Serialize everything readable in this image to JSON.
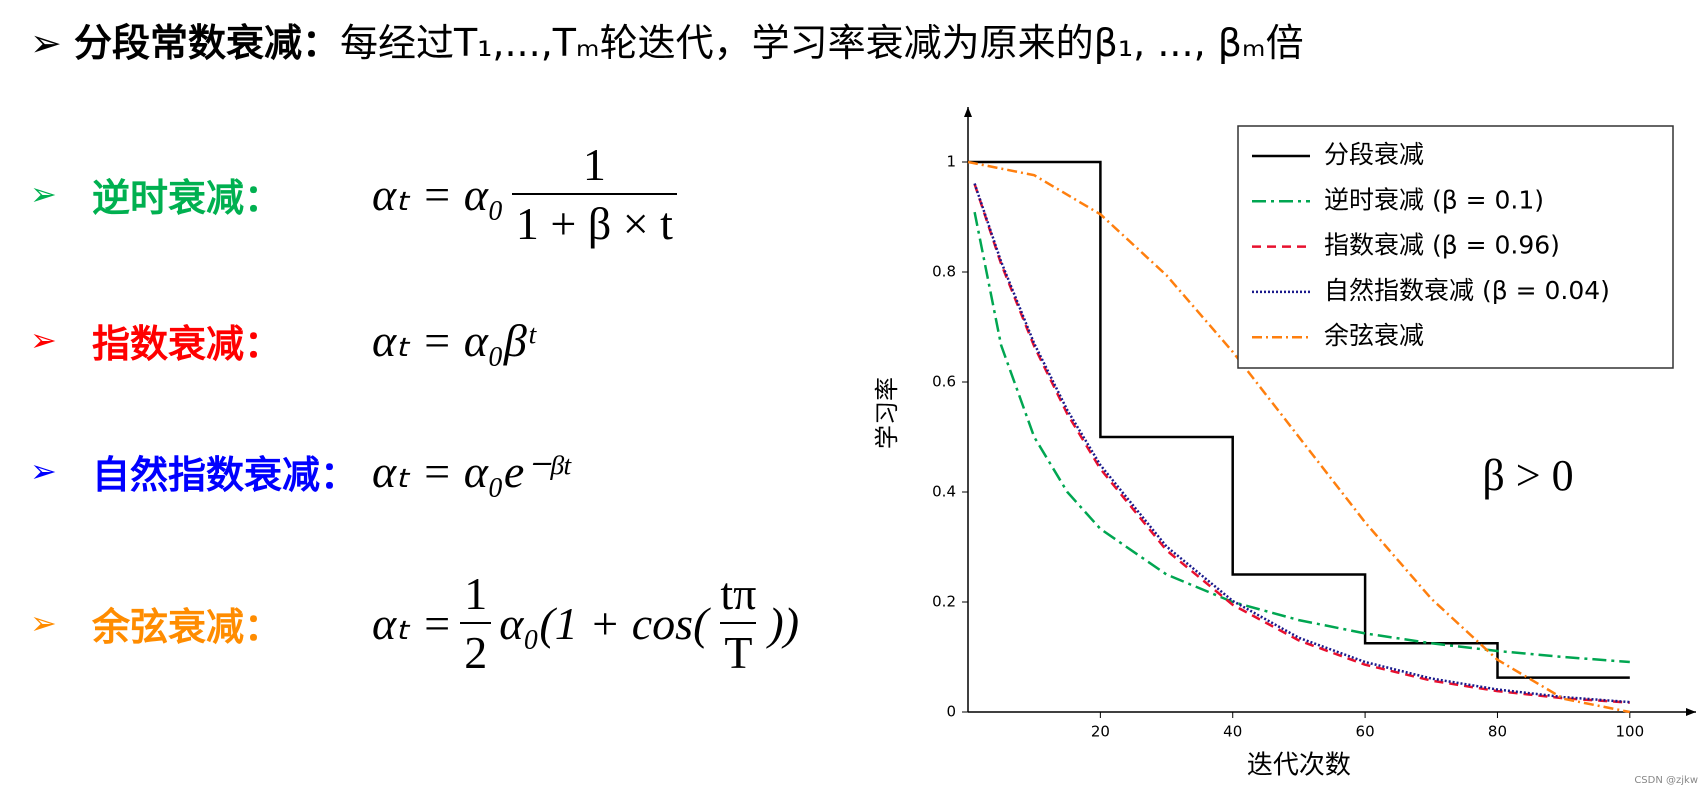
{
  "header": {
    "bullet": "➢",
    "title": "分段常数衰减：",
    "text": "每经过T₁,...,Tₘ轮迭代，学习率衰减为原来的β₁, ..., βₘ倍"
  },
  "formulas": [
    {
      "bullet": "➢",
      "label": "逆时衰减：",
      "color": "#00b050",
      "lhs": "αₜ = α₀",
      "num": "1",
      "den": "1 + β × t"
    },
    {
      "bullet": "➢",
      "label": "指数衰减：",
      "color": "#ff0000",
      "lhs": "αₜ = α₀βᵗ"
    },
    {
      "bullet": "➢",
      "label": "自然指数衰减：",
      "color": "#0000ff",
      "lhs": "αₜ = α₀e⁻ᵝᵗ"
    },
    {
      "bullet": "➢",
      "label": "余弦衰减：",
      "color": "#ff8c00",
      "lhs": "αₜ = ",
      "num": "1",
      "den": "2",
      "rest": "α₀(1 + cos(",
      "num2": "tπ",
      "den2": "T",
      "rest2": "))"
    }
  ],
  "watermark": "CSDN @zjkw",
  "chart_data": {
    "type": "line",
    "xlabel": "迭代次数",
    "ylabel": "学习率",
    "annotation": "β > 0",
    "xlim": [
      0,
      110
    ],
    "ylim": [
      0,
      1.1
    ],
    "xticks": [
      20,
      40,
      60,
      80,
      100
    ],
    "yticks": [
      0,
      0.2,
      0.4,
      0.6,
      0.8,
      1
    ],
    "legend": "upper right",
    "series": [
      {
        "name": "分段衰减",
        "color": "#000000",
        "style": "solid",
        "x": [
          0,
          20,
          20,
          40,
          40,
          60,
          60,
          80,
          80,
          100
        ],
        "values": [
          1,
          1,
          0.5,
          0.5,
          0.25,
          0.25,
          0.125,
          0.125,
          0.0625,
          0.0625
        ]
      },
      {
        "name": "逆时衰减 (β = 0.1)",
        "color": "#00a651",
        "style": "dashdot",
        "x": [
          1,
          5,
          10,
          15,
          20,
          30,
          40,
          50,
          60,
          70,
          80,
          90,
          100
        ],
        "values": [
          0.909,
          0.667,
          0.5,
          0.4,
          0.333,
          0.25,
          0.2,
          0.167,
          0.143,
          0.125,
          0.111,
          0.1,
          0.091
        ]
      },
      {
        "name": "指数衰减 (β = 0.96)",
        "color": "#e8102e",
        "style": "dashed",
        "x": [
          1,
          5,
          10,
          15,
          20,
          30,
          40,
          50,
          60,
          70,
          80,
          90,
          100
        ],
        "values": [
          0.96,
          0.815,
          0.665,
          0.542,
          0.442,
          0.294,
          0.195,
          0.13,
          0.086,
          0.057,
          0.038,
          0.025,
          0.017
        ]
      },
      {
        "name": "自然指数衰减 (β = 0.04)",
        "color": "#1a1a8c",
        "style": "dotted",
        "x": [
          1,
          5,
          10,
          15,
          20,
          30,
          40,
          50,
          60,
          70,
          80,
          90,
          100
        ],
        "values": [
          0.961,
          0.819,
          0.67,
          0.549,
          0.449,
          0.301,
          0.202,
          0.135,
          0.091,
          0.061,
          0.041,
          0.027,
          0.018
        ]
      },
      {
        "name": "余弦衰减",
        "color": "#ff7f0e",
        "style": "dashdotdot",
        "x": [
          0,
          10,
          20,
          30,
          40,
          50,
          60,
          70,
          80,
          90,
          100
        ],
        "values": [
          1,
          0.976,
          0.905,
          0.794,
          0.655,
          0.5,
          0.345,
          0.206,
          0.095,
          0.024,
          0
        ]
      }
    ]
  }
}
